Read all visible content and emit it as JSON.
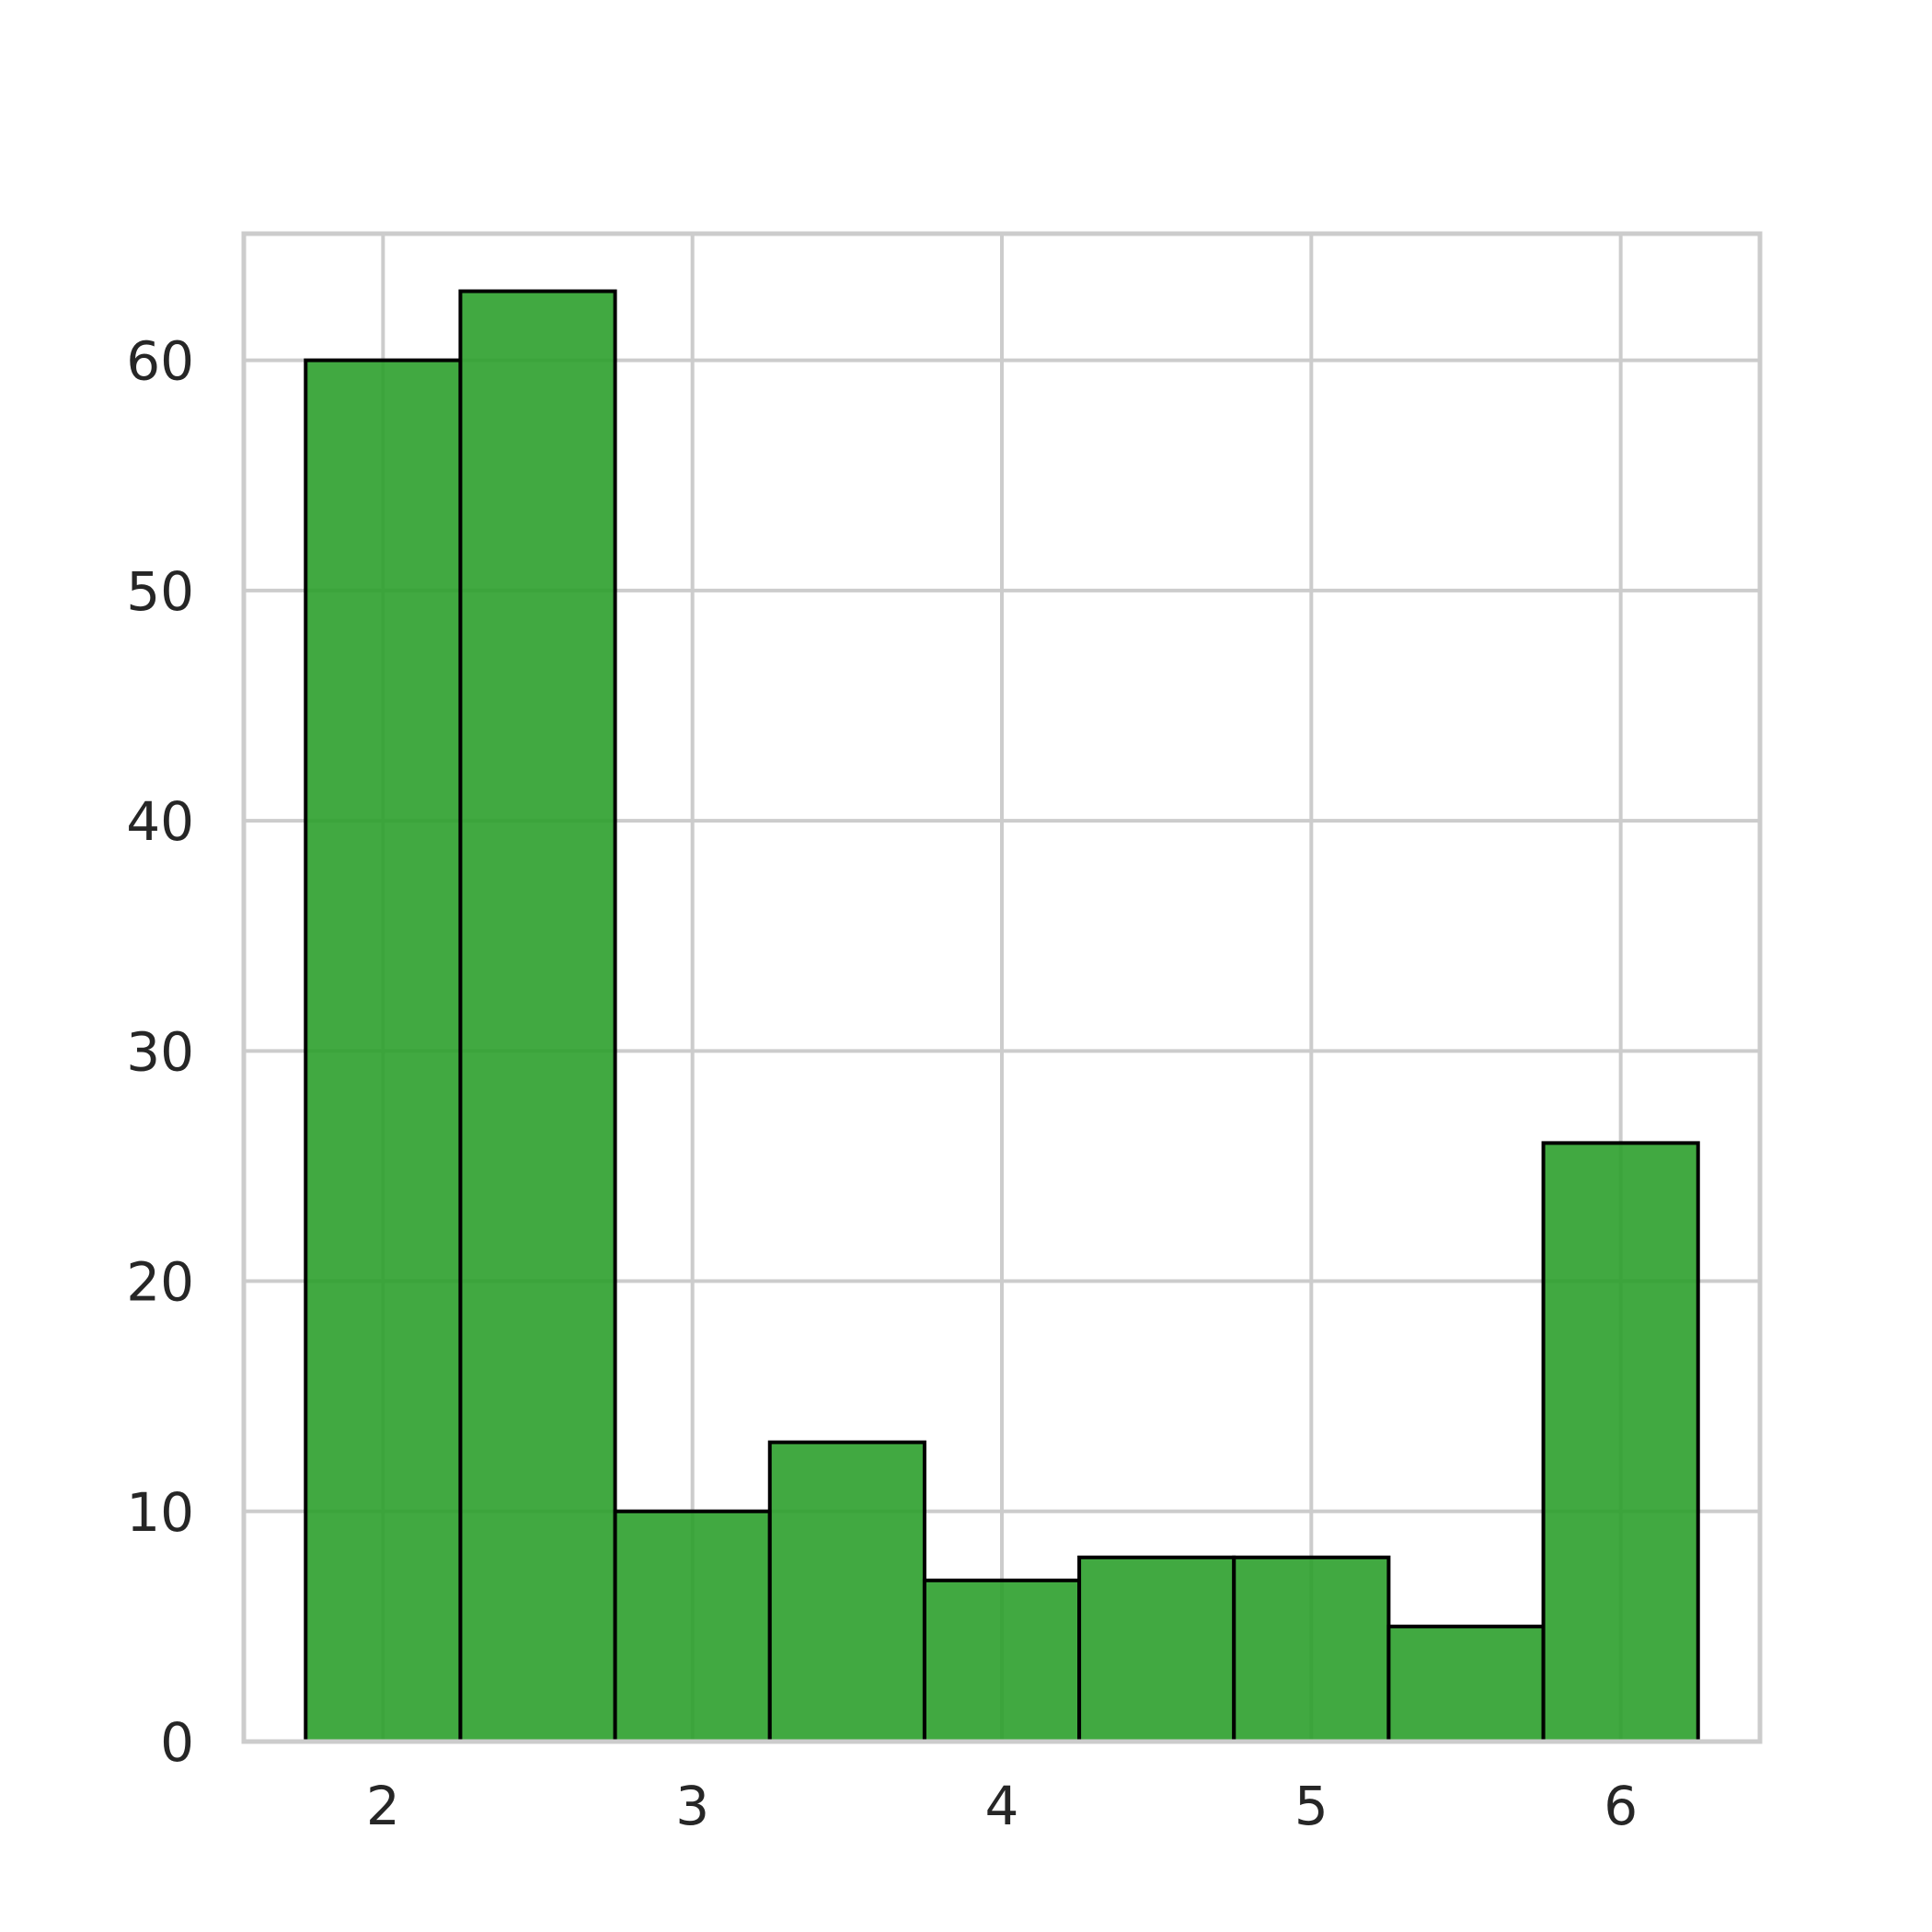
{
  "chart_data": {
    "type": "bar",
    "subtype": "histogram",
    "bin_edges": [
      1.75,
      2.25,
      2.75,
      3.25,
      3.75,
      4.25,
      4.75,
      5.25,
      5.75,
      6.25
    ],
    "values": [
      60,
      63,
      10,
      13,
      7,
      8,
      8,
      5,
      26
    ],
    "title": "",
    "xlabel": "",
    "ylabel": "",
    "xlim": [
      1.55,
      6.45
    ],
    "ylim": [
      0,
      65.5
    ],
    "xticks": [
      2,
      3,
      4,
      5,
      6
    ],
    "xtick_labels": [
      "2",
      "3",
      "4",
      "5",
      "6"
    ],
    "yticks": [
      0,
      10,
      20,
      30,
      40,
      50,
      60
    ],
    "ytick_labels": [
      "0",
      "10",
      "20",
      "30",
      "40",
      "50",
      "60"
    ],
    "grid": true,
    "colors": {
      "bar_fill": "#2ca02c",
      "bar_edge": "#000000",
      "grid": "#cccccc",
      "axes_edge": "#cccccc",
      "text": "#262626"
    }
  }
}
